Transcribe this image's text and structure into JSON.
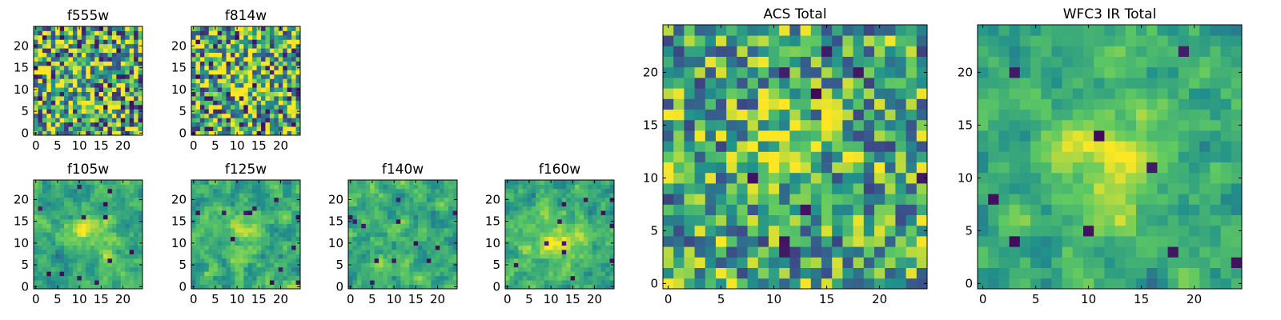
{
  "figure": {
    "colormap": [
      "#440154",
      "#3b528b",
      "#21918c",
      "#5ec962",
      "#fde725"
    ]
  },
  "chart_data": [
    {
      "type": "heatmap",
      "title": "f555w",
      "xlabel": "",
      "ylabel": "",
      "xlim": [
        0,
        24
      ],
      "ylim": [
        0,
        24
      ],
      "xticks": [
        "0",
        "5",
        "10",
        "15",
        "20"
      ],
      "yticks": [
        "0",
        "5",
        "10",
        "15",
        "20"
      ],
      "grid": false,
      "image_size": [
        25,
        25
      ],
      "feature": "noisy pixel field with faint bright blob near x=10, y=12"
    },
    {
      "type": "heatmap",
      "title": "f814w",
      "xlabel": "",
      "ylabel": "",
      "xlim": [
        0,
        24
      ],
      "ylim": [
        0,
        24
      ],
      "xticks": [
        "0",
        "5",
        "10",
        "15",
        "20"
      ],
      "yticks": [
        "0",
        "5",
        "10",
        "15",
        "20"
      ],
      "grid": false,
      "image_size": [
        25,
        25
      ],
      "feature": "noisy pixel field with faint bright blob near x=11, y=13"
    },
    {
      "type": "heatmap",
      "title": "f105w",
      "xlabel": "",
      "ylabel": "",
      "xlim": [
        0,
        24
      ],
      "ylim": [
        0,
        24
      ],
      "xticks": [
        "0",
        "5",
        "10",
        "15",
        "20"
      ],
      "yticks": [
        "0",
        "5",
        "10",
        "15",
        "20"
      ],
      "grid": false,
      "image_size": [
        25,
        25
      ],
      "feature": "smoother pixel field, bright patches near x=12, y=12 and x=16, y=6"
    },
    {
      "type": "heatmap",
      "title": "f125w",
      "xlabel": "",
      "ylabel": "",
      "xlim": [
        0,
        24
      ],
      "ylim": [
        0,
        24
      ],
      "xticks": [
        "0",
        "5",
        "10",
        "15",
        "20"
      ],
      "yticks": [
        "0",
        "5",
        "10",
        "15",
        "20"
      ],
      "grid": false,
      "image_size": [
        25,
        25
      ],
      "feature": "bright blob near x=13, y=13"
    },
    {
      "type": "heatmap",
      "title": "f140w",
      "xlabel": "",
      "ylabel": "",
      "xlim": [
        0,
        24
      ],
      "ylim": [
        0,
        24
      ],
      "xticks": [
        "0",
        "5",
        "10",
        "15",
        "20"
      ],
      "yticks": [
        "0",
        "5",
        "10",
        "15",
        "20"
      ],
      "grid": false,
      "image_size": [
        25,
        25
      ],
      "feature": "mottled field, bright spots near x=10, y=12"
    },
    {
      "type": "heatmap",
      "title": "f160w",
      "xlabel": "",
      "ylabel": "",
      "xlim": [
        0,
        24
      ],
      "ylim": [
        0,
        24
      ],
      "xticks": [
        "0",
        "5",
        "10",
        "15",
        "20"
      ],
      "yticks": [
        "0",
        "5",
        "10",
        "15",
        "20"
      ],
      "grid": false,
      "image_size": [
        25,
        25
      ],
      "feature": "broad bright region centered near x=11, y=11"
    },
    {
      "type": "heatmap",
      "title": "ACS Total",
      "xlabel": "",
      "ylabel": "",
      "xlim": [
        0,
        24
      ],
      "ylim": [
        0,
        24
      ],
      "xticks": [
        "0",
        "5",
        "10",
        "15",
        "20"
      ],
      "yticks": [
        "0",
        "5",
        "10",
        "15",
        "20"
      ],
      "grid": false,
      "image_size": [
        25,
        25
      ],
      "feature": "bright compact source near x=11, y=13"
    },
    {
      "type": "heatmap",
      "title": "WFC3 IR Total",
      "xlabel": "",
      "ylabel": "",
      "xlim": [
        0,
        24
      ],
      "ylim": [
        0,
        24
      ],
      "xticks": [
        "0",
        "5",
        "10",
        "15",
        "20"
      ],
      "yticks": [
        "0",
        "5",
        "10",
        "15",
        "20"
      ],
      "grid": false,
      "image_size": [
        25,
        25
      ],
      "feature": "extended bright source centered near x=12, y=12"
    }
  ]
}
